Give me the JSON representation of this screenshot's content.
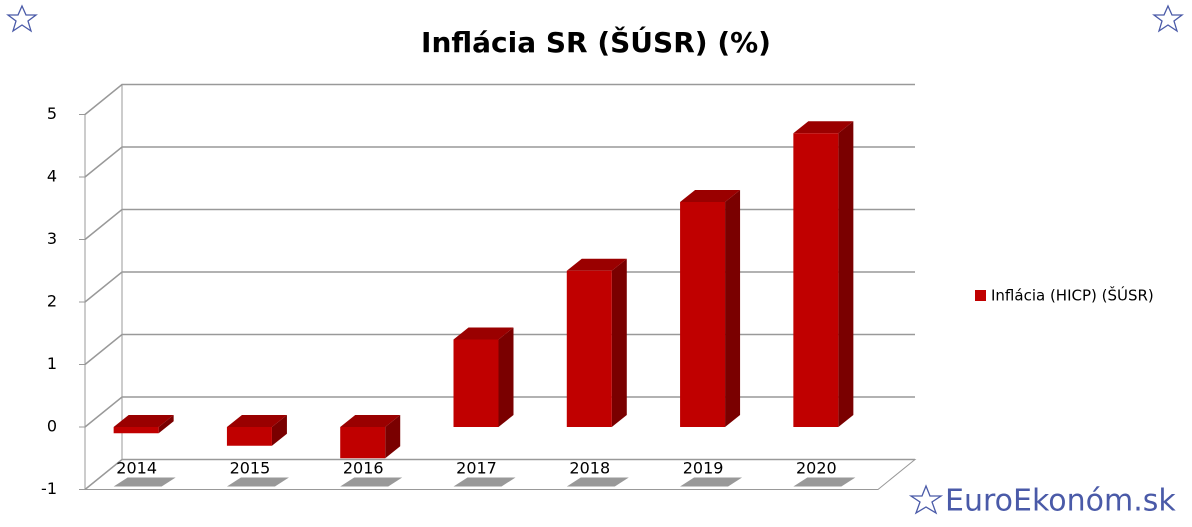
{
  "chart_data": {
    "type": "bar3d",
    "title": "Inflácia SR (ŠÚSR) (%)",
    "categories": [
      "2014",
      "2015",
      "2016",
      "2017",
      "2018",
      "2019",
      "2020"
    ],
    "series": [
      {
        "name": "Inflácia (HICP) (ŠÚSR)",
        "color": "#c00000",
        "values": [
          -0.1,
          -0.3,
          -0.5,
          1.4,
          2.5,
          3.6,
          4.7
        ]
      }
    ],
    "ylim": [
      -1,
      5
    ],
    "yticks": [
      -1,
      0,
      1,
      2,
      3,
      4,
      5
    ],
    "grid": true,
    "legend": "right",
    "watermark": "EuroEkonóm.sk"
  }
}
